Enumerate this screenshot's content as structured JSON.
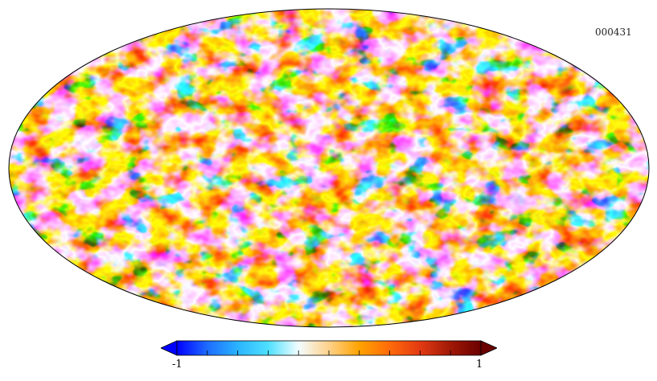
{
  "map": {
    "identifier": "000431",
    "projection": "mollweide",
    "colormap": [
      "#0000ff",
      "#1e6cff",
      "#2ab4ff",
      "#4ee0ff",
      "#f2fdff",
      "#ffd18a",
      "#ffa300",
      "#ff6a0a",
      "#e23a12",
      "#a01806",
      "#6a0000"
    ],
    "background_color": "#ffffff",
    "outline_color": "#000000"
  },
  "colorbar": {
    "min_label": "-1",
    "max_label": "1",
    "min_value": -1,
    "max_value": 1,
    "extend": "both",
    "tick_count": 11
  }
}
